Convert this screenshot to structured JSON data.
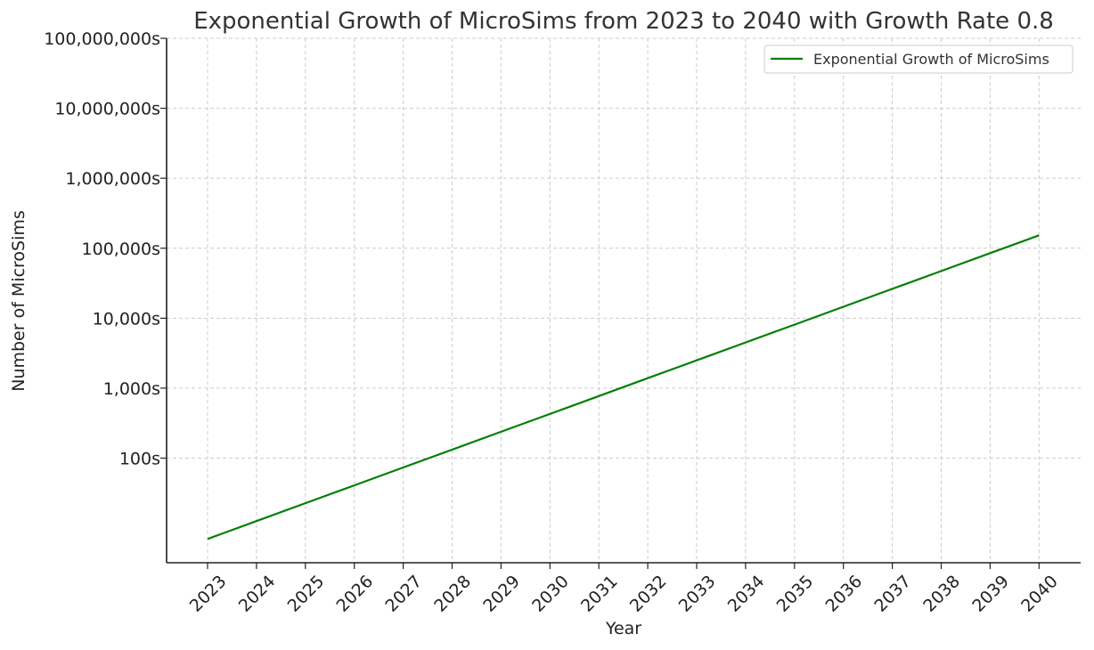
{
  "chart_data": {
    "type": "line",
    "title": "Exponential Growth of MicroSims from 2023 to 2040 with Growth Rate 0.8",
    "xlabel": "Year",
    "ylabel": "Number of MicroSims",
    "y_scale": "log",
    "ylim": [
      3.2,
      100000000
    ],
    "grid": true,
    "legend_position": "top-right",
    "x_ticks": [
      "2023",
      "2024",
      "2025",
      "2026",
      "2027",
      "2028",
      "2029",
      "2030",
      "2031",
      "2032",
      "2033",
      "2034",
      "2035",
      "2036",
      "2037",
      "2038",
      "2039",
      "2040"
    ],
    "y_ticks": [
      {
        "value": 100,
        "label": "100s"
      },
      {
        "value": 1000,
        "label": "1,000s"
      },
      {
        "value": 10000,
        "label": "10,000s"
      },
      {
        "value": 100000,
        "label": "100,000s"
      },
      {
        "value": 1000000,
        "label": "1,000,000s"
      },
      {
        "value": 10000000,
        "label": "10,000,000s"
      },
      {
        "value": 100000000,
        "label": "100,000,000s"
      }
    ],
    "series": [
      {
        "name": "Exponential Growth of MicroSims",
        "color": "#008000",
        "x": [
          2023,
          2024,
          2025,
          2026,
          2027,
          2028,
          2029,
          2030,
          2031,
          2032,
          2033,
          2034,
          2035,
          2036,
          2037,
          2038,
          2039,
          2040
        ],
        "values": [
          7,
          12.6,
          22.7,
          40.8,
          73.5,
          132,
          238,
          428,
          771,
          1388,
          2499,
          4498,
          8096,
          14573,
          26231,
          47216,
          84989,
          152981
        ]
      }
    ]
  }
}
